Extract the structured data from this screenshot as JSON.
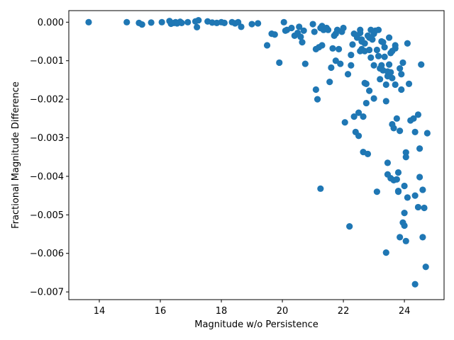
{
  "chart_data": {
    "type": "scatter",
    "title": "",
    "xlabel": "Magnitude w/o Persistence",
    "ylabel": "Fractional Magnitude Difference",
    "xlim": [
      13.0,
      25.3
    ],
    "ylim": [
      -0.0072,
      0.0003
    ],
    "grid": false,
    "marker_color": "#1f77b4",
    "x_ticks": [
      {
        "value": 14,
        "label": "14"
      },
      {
        "value": 16,
        "label": "16"
      },
      {
        "value": 18,
        "label": "18"
      },
      {
        "value": 20,
        "label": "20"
      },
      {
        "value": 22,
        "label": "22"
      },
      {
        "value": 24,
        "label": "24"
      }
    ],
    "y_ticks": [
      {
        "value": 0.0,
        "label": "0.000"
      },
      {
        "value": -0.001,
        "label": "−0.001"
      },
      {
        "value": -0.002,
        "label": "−0.002"
      },
      {
        "value": -0.003,
        "label": "−0.003"
      },
      {
        "value": -0.004,
        "label": "−0.004"
      },
      {
        "value": -0.005,
        "label": "−0.005"
      },
      {
        "value": -0.006,
        "label": "−0.006"
      },
      {
        "value": -0.007,
        "label": "−0.007"
      }
    ],
    "points": [
      [
        13.65,
        0.0
      ],
      [
        14.9,
        0.0
      ],
      [
        15.3,
        -2e-05
      ],
      [
        15.4,
        -6e-05
      ],
      [
        15.7,
        -1e-05
      ],
      [
        16.05,
        0.0
      ],
      [
        16.3,
        3e-05
      ],
      [
        16.35,
        -4e-05
      ],
      [
        16.45,
        -2e-05
      ],
      [
        16.5,
        0.0
      ],
      [
        16.55,
        -3e-05
      ],
      [
        16.65,
        1e-05
      ],
      [
        16.7,
        -2e-05
      ],
      [
        16.9,
        0.0
      ],
      [
        17.15,
        2e-05
      ],
      [
        17.2,
        -0.00013
      ],
      [
        17.25,
        5e-05
      ],
      [
        17.55,
        2e-05
      ],
      [
        17.7,
        -1e-05
      ],
      [
        17.85,
        -2e-05
      ],
      [
        18.0,
        0.0
      ],
      [
        18.1,
        -2e-05
      ],
      [
        18.35,
        0.0
      ],
      [
        18.45,
        -3e-05
      ],
      [
        18.55,
        0.0
      ],
      [
        18.65,
        -0.00012
      ],
      [
        19.0,
        -5e-05
      ],
      [
        19.2,
        -3e-05
      ],
      [
        19.5,
        -0.0006
      ],
      [
        19.65,
        -0.0003
      ],
      [
        19.75,
        -0.00032
      ],
      [
        19.9,
        -0.00105
      ],
      [
        20.05,
        0.0
      ],
      [
        20.1,
        -0.00022
      ],
      [
        20.15,
        -0.0002
      ],
      [
        20.3,
        -0.00015
      ],
      [
        20.4,
        -0.00035
      ],
      [
        20.5,
        -0.00028
      ],
      [
        20.55,
        -0.00012
      ],
      [
        20.6,
        -0.00038
      ],
      [
        20.65,
        -0.00052
      ],
      [
        20.7,
        -0.00022
      ],
      [
        20.75,
        -0.00108
      ],
      [
        21.0,
        -5e-05
      ],
      [
        21.05,
        -0.00025
      ],
      [
        21.1,
        -0.0007
      ],
      [
        21.1,
        -0.00175
      ],
      [
        21.15,
        -0.002
      ],
      [
        21.2,
        -0.00065
      ],
      [
        21.25,
        -0.00015
      ],
      [
        21.3,
        -0.0001
      ],
      [
        21.3,
        -0.0006
      ],
      [
        21.35,
        -0.0002
      ],
      [
        21.45,
        -0.00015
      ],
      [
        21.5,
        -0.0002
      ],
      [
        21.55,
        -0.00155
      ],
      [
        21.6,
        -0.00118
      ],
      [
        21.65,
        -0.00068
      ],
      [
        21.7,
        -0.00035
      ],
      [
        21.75,
        -0.0003
      ],
      [
        21.75,
        -0.001
      ],
      [
        21.8,
        -0.0002
      ],
      [
        21.85,
        -0.0007
      ],
      [
        21.9,
        -0.00108
      ],
      [
        21.95,
        -0.00025
      ],
      [
        22.0,
        -0.00015
      ],
      [
        22.05,
        -0.0026
      ],
      [
        22.15,
        -0.00135
      ],
      [
        22.2,
        -0.0053
      ],
      [
        22.25,
        -0.00085
      ],
      [
        22.25,
        -0.00112
      ],
      [
        22.3,
        -0.00058
      ],
      [
        22.35,
        -0.00245
      ],
      [
        22.4,
        -0.00285
      ],
      [
        22.45,
        -0.0004
      ],
      [
        22.5,
        -0.00235
      ],
      [
        22.5,
        -0.00295
      ],
      [
        22.55,
        -0.00028
      ],
      [
        22.55,
        -0.0002
      ],
      [
        22.6,
        -0.0007
      ],
      [
        22.6,
        -0.00045
      ],
      [
        22.65,
        -0.00245
      ],
      [
        22.65,
        -0.00337
      ],
      [
        22.7,
        -0.00075
      ],
      [
        22.7,
        -0.00158
      ],
      [
        22.75,
        -0.0021
      ],
      [
        22.75,
        -0.0016
      ],
      [
        22.8,
        -0.00035
      ],
      [
        22.8,
        -0.00342
      ],
      [
        22.85,
        -0.00178
      ],
      [
        22.85,
        -0.00072
      ],
      [
        22.9,
        -0.00092
      ],
      [
        22.95,
        -0.00045
      ],
      [
        23.0,
        -0.00198
      ],
      [
        23.0,
        -0.00112
      ],
      [
        23.05,
        -0.00022
      ],
      [
        23.1,
        -0.00072
      ],
      [
        23.1,
        -0.0044
      ],
      [
        23.15,
        -0.00088
      ],
      [
        23.2,
        -0.00148
      ],
      [
        23.2,
        -0.0012
      ],
      [
        23.25,
        -0.00112
      ],
      [
        23.3,
        -0.00125
      ],
      [
        23.3,
        -0.00052
      ],
      [
        23.35,
        -0.00065
      ],
      [
        23.4,
        -0.00205
      ],
      [
        23.4,
        -0.00162
      ],
      [
        23.4,
        -0.00598
      ],
      [
        23.45,
        -0.00128
      ],
      [
        23.45,
        -0.00365
      ],
      [
        23.5,
        -0.0004
      ],
      [
        23.55,
        -0.0008
      ],
      [
        23.6,
        -0.00265
      ],
      [
        23.6,
        -0.00145
      ],
      [
        23.65,
        -0.0041
      ],
      [
        23.65,
        -0.00275
      ],
      [
        23.7,
        -0.00162
      ],
      [
        23.75,
        -0.0025
      ],
      [
        23.8,
        -0.0039
      ],
      [
        23.8,
        -0.00438
      ],
      [
        23.85,
        -0.00282
      ],
      [
        23.85,
        -0.00558
      ],
      [
        23.9,
        -0.00175
      ],
      [
        23.9,
        -0.00135
      ],
      [
        23.95,
        -0.00105
      ],
      [
        24.0,
        -0.00495
      ],
      [
        24.0,
        -0.00425
      ],
      [
        24.05,
        -0.00338
      ],
      [
        24.05,
        -0.00568
      ],
      [
        24.1,
        -0.00055
      ],
      [
        24.15,
        -0.0016
      ],
      [
        24.2,
        -0.00255
      ],
      [
        24.3,
        -0.0025
      ],
      [
        24.35,
        -0.00285
      ],
      [
        24.35,
        -0.0045
      ],
      [
        24.35,
        -0.0068
      ],
      [
        24.45,
        -0.0024
      ],
      [
        24.45,
        -0.0048
      ],
      [
        24.5,
        -0.00328
      ],
      [
        24.5,
        -0.00402
      ],
      [
        24.55,
        -0.0011
      ],
      [
        24.6,
        -0.00435
      ],
      [
        24.6,
        -0.00558
      ],
      [
        24.65,
        -0.00482
      ],
      [
        24.7,
        -0.00635
      ],
      [
        24.75,
        -0.00288
      ],
      [
        22.55,
        -0.00075
      ],
      [
        22.7,
        -0.00055
      ],
      [
        22.9,
        -0.0002
      ],
      [
        23.0,
        -0.0003
      ],
      [
        23.15,
        -0.0002
      ],
      [
        23.5,
        -0.0011
      ],
      [
        23.6,
        -0.00075
      ],
      [
        23.7,
        -0.00068
      ],
      [
        23.95,
        -0.0052
      ],
      [
        24.0,
        -0.00528
      ],
      [
        24.05,
        -0.0035
      ],
      [
        24.1,
        -0.00455
      ],
      [
        23.55,
        -0.00405
      ],
      [
        23.75,
        -0.00408
      ],
      [
        23.45,
        -0.00395
      ],
      [
        23.8,
        -0.0044
      ],
      [
        22.6,
        -0.0005
      ],
      [
        22.35,
        -0.0003
      ],
      [
        22.85,
        -0.0004
      ],
      [
        23.25,
        -0.0005
      ],
      [
        23.35,
        -0.0009
      ],
      [
        23.45,
        -0.0014
      ],
      [
        23.55,
        -0.0013
      ],
      [
        23.7,
        -0.0006
      ],
      [
        21.25,
        -0.00432
      ],
      [
        23.85,
        -0.0012
      ]
    ]
  }
}
